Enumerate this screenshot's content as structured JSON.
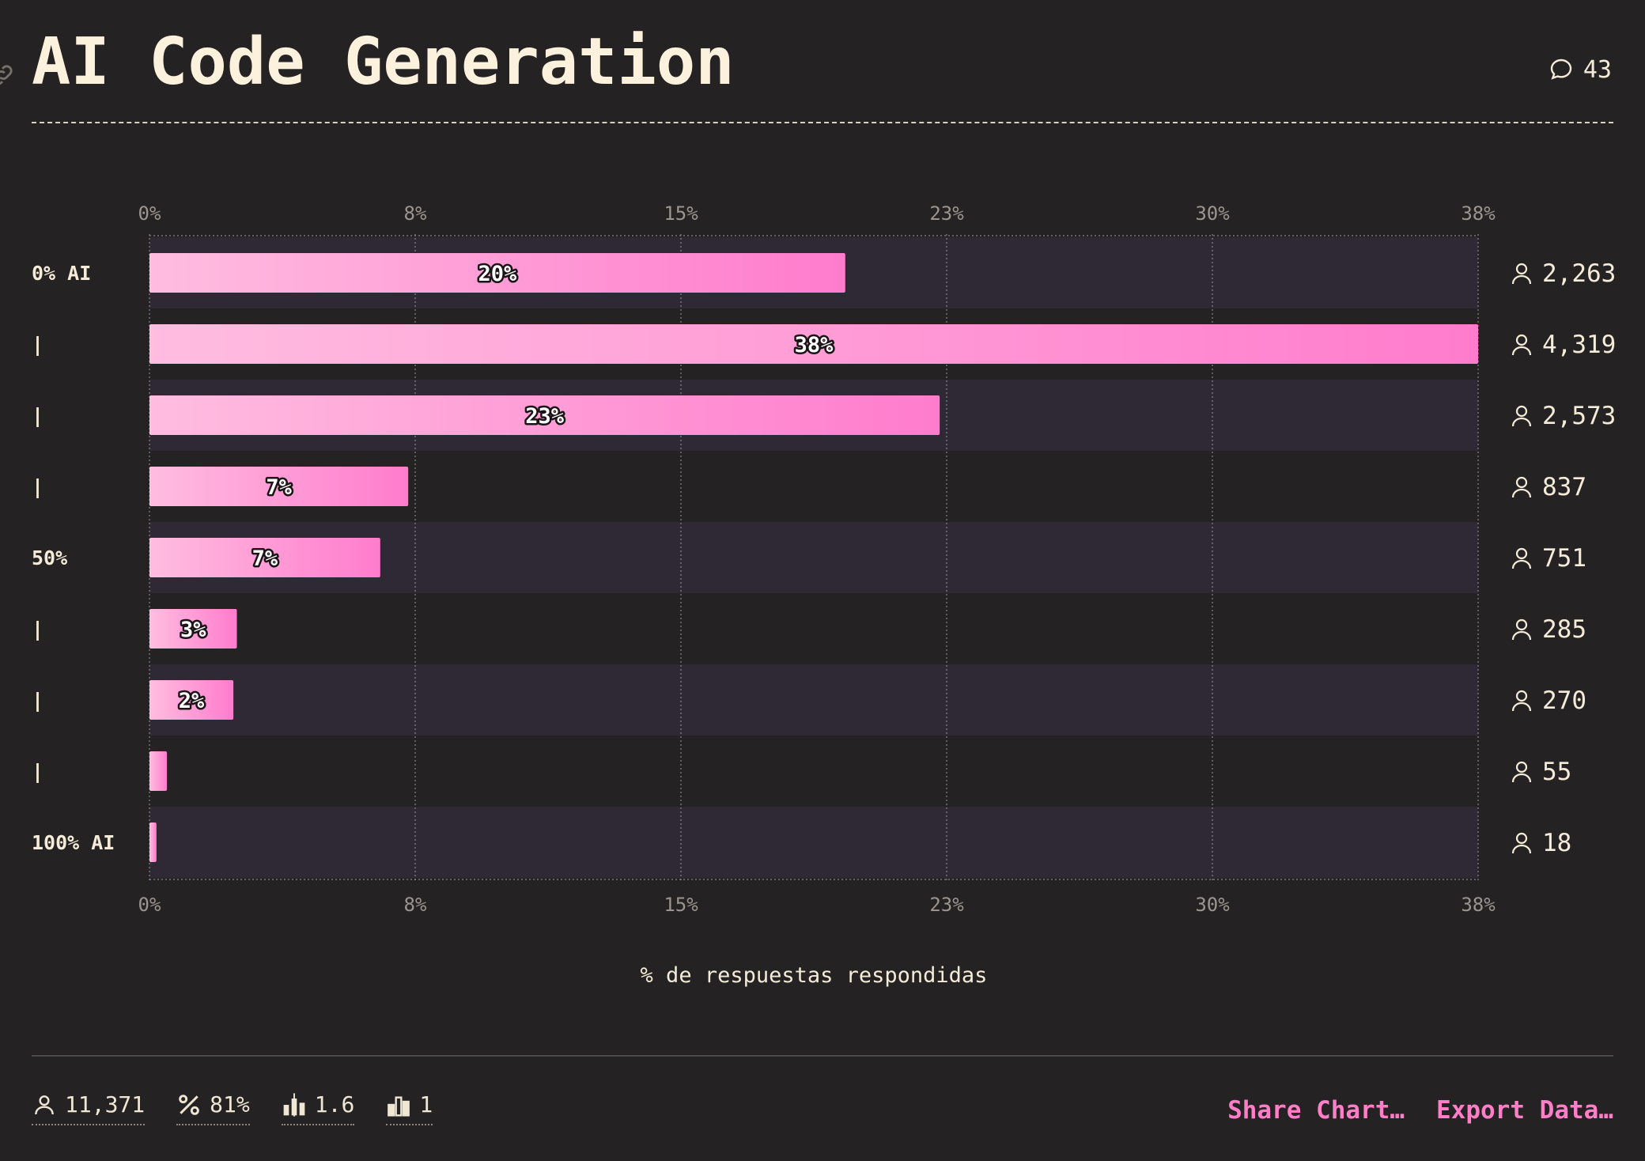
{
  "header": {
    "title": "AI Code Generation",
    "comment_count": "43"
  },
  "chart_data": {
    "type": "bar",
    "orientation": "horizontal",
    "title": "AI Code Generation",
    "xlabel": "% de respuestas respondidas",
    "ylabel": "",
    "xlim": [
      0,
      38
    ],
    "x_ticks": [
      "0%",
      "8%",
      "15%",
      "23%",
      "30%",
      "38%"
    ],
    "x_tick_values": [
      0,
      7.6,
      15.2,
      22.8,
      30.4,
      38
    ],
    "categories": [
      "0% AI",
      "|",
      "|",
      "|",
      "50%",
      "|",
      "|",
      "|",
      "100% AI"
    ],
    "values": [
      19.9,
      38.0,
      22.6,
      7.4,
      6.6,
      2.5,
      2.4,
      0.5,
      0.2
    ],
    "value_labels": [
      "20%",
      "38%",
      "23%",
      "7%",
      "7%",
      "3%",
      "2%",
      "",
      ""
    ],
    "respondents": [
      "2,263",
      "4,319",
      "2,573",
      "837",
      "751",
      "285",
      "270",
      "55",
      "18"
    ],
    "grid": true,
    "colors": {
      "bar_start": "#ffbde0",
      "bar_end": "#ff7ccd",
      "row_band": "#2f2935",
      "background": "#252223",
      "grid": "#8c8786",
      "tick_text": "#9b9590",
      "label_text": "#f4ecd8"
    }
  },
  "footer": {
    "stats": [
      {
        "icon": "user-icon",
        "value": "11,371"
      },
      {
        "icon": "percent-icon",
        "value": "81%"
      },
      {
        "icon": "average-bars-icon",
        "value": "1.6"
      },
      {
        "icon": "median-bars-icon",
        "value": "1"
      }
    ],
    "share_label": "Share Chart…",
    "export_label": "Export Data…",
    "accent": "#ff7ec7"
  }
}
